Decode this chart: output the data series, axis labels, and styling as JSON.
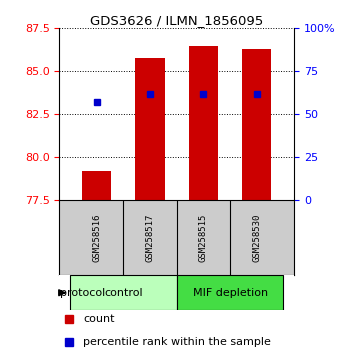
{
  "title": "GDS3626 / ILMN_1856095",
  "samples": [
    "GSM258516",
    "GSM258517",
    "GSM258515",
    "GSM258530"
  ],
  "groups": [
    {
      "name": "control",
      "indices": [
        0,
        1
      ]
    },
    {
      "name": "MIF depletion",
      "indices": [
        2,
        3
      ]
    }
  ],
  "bar_bottom": 77.5,
  "bar_values": [
    79.2,
    85.8,
    86.5,
    86.3
  ],
  "percentile_values": [
    83.2,
    83.65,
    83.7,
    83.65
  ],
  "ylim_left": [
    77.5,
    87.5
  ],
  "yticks_left": [
    77.5,
    80.0,
    82.5,
    85.0,
    87.5
  ],
  "ylim_right": [
    0,
    100
  ],
  "yticks_right": [
    0,
    25,
    50,
    75,
    100
  ],
  "bar_color": "#cc0000",
  "percentile_color": "#0000cc",
  "bar_width": 0.55,
  "bg_color": "#ffffff",
  "plot_bg": "#ffffff",
  "label_count": "count",
  "label_percentile": "percentile rank within the sample",
  "group_label": "protocol",
  "sample_bg_color": "#cccccc",
  "control_color": "#bbffbb",
  "mif_color": "#44dd44"
}
